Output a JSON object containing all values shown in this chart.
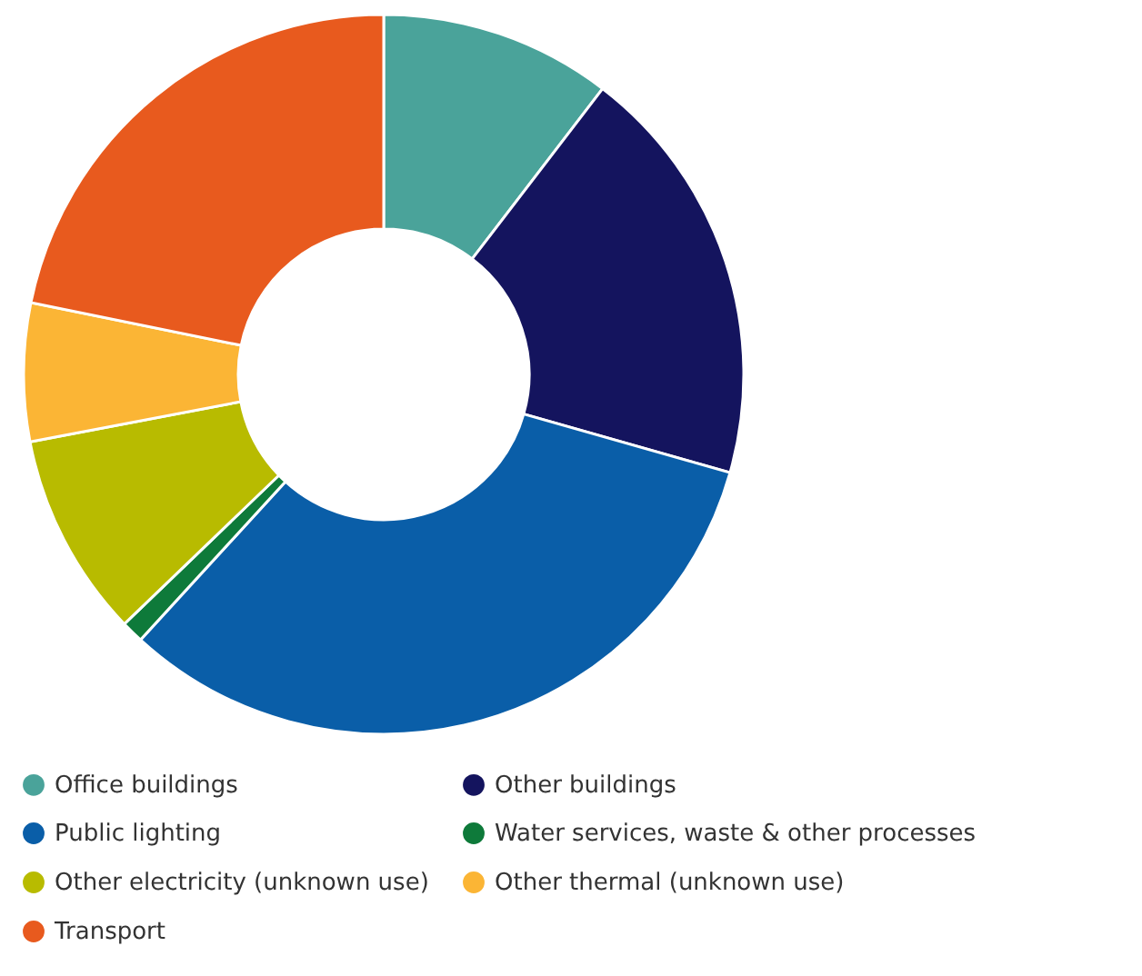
{
  "chart_data": {
    "type": "donut",
    "categories": [
      "Office buildings",
      "Other buildings",
      "Public lighting",
      "Water services, waste & other processes",
      "Other electricity (unknown use)",
      "Other thermal (unknown use)",
      "Transport"
    ],
    "values": [
      10.4,
      19,
      32.4,
      1,
      9.2,
      6.2,
      21.8
    ],
    "colors": [
      "#4aa39a",
      "#14145e",
      "#0a5ea8",
      "#0e7a3a",
      "#b8bb00",
      "#fbb535",
      "#e85a1e"
    ],
    "legend": "bottom"
  }
}
